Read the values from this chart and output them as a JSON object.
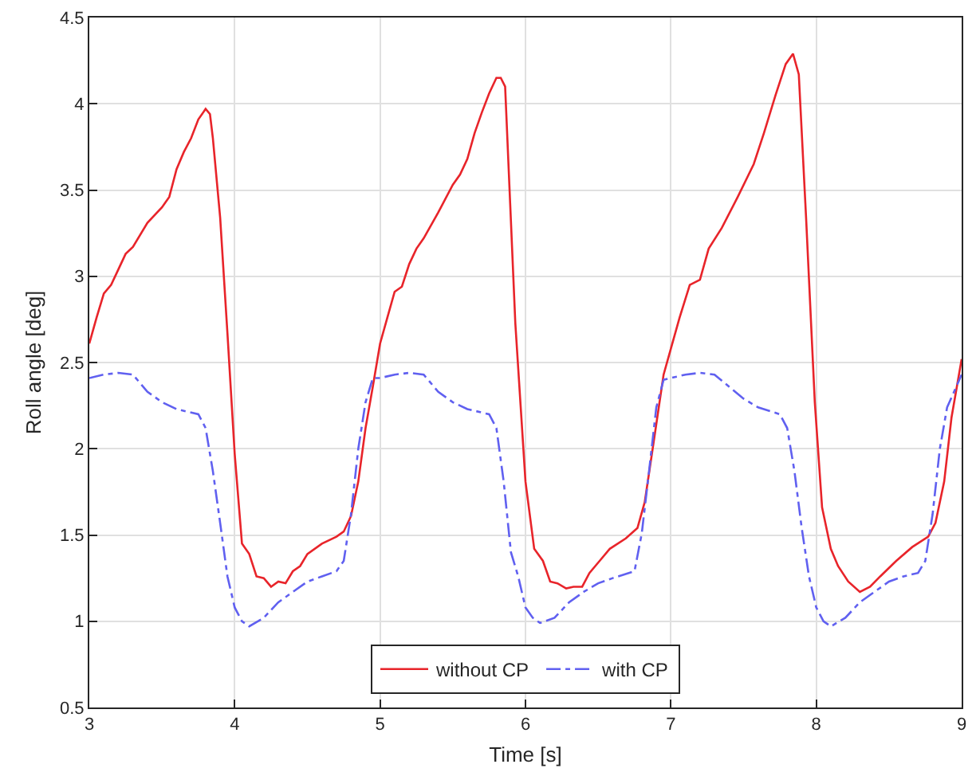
{
  "chart_data": {
    "type": "line",
    "xlabel": "Time [s]",
    "ylabel": "Roll angle [deg]",
    "xlim": [
      3,
      9
    ],
    "ylim": [
      0.5,
      4.5
    ],
    "xticks": [
      3,
      4,
      5,
      6,
      7,
      8,
      9
    ],
    "yticks": [
      0.5,
      1,
      1.5,
      2,
      2.5,
      3,
      3.5,
      4,
      4.5
    ],
    "grid": true,
    "legend": "bottom",
    "marker": "none",
    "series": [
      {
        "name": "without CP",
        "color": "#e8242a",
        "line_style": "solid",
        "x": [
          3.0,
          3.05,
          3.1,
          3.15,
          3.2,
          3.25,
          3.3,
          3.4,
          3.5,
          3.55,
          3.6,
          3.65,
          3.7,
          3.75,
          3.8,
          3.83,
          3.85,
          3.9,
          3.95,
          4.0,
          4.05,
          4.1,
          4.15,
          4.2,
          4.25,
          4.3,
          4.35,
          4.4,
          4.45,
          4.5,
          4.6,
          4.7,
          4.75,
          4.8,
          4.85,
          4.9,
          4.95,
          5.0,
          5.05,
          5.1,
          5.15,
          5.2,
          5.25,
          5.3,
          5.4,
          5.5,
          5.55,
          5.6,
          5.65,
          5.7,
          5.75,
          5.8,
          5.83,
          5.86,
          5.93,
          6.0,
          6.06,
          6.12,
          6.17,
          6.22,
          6.28,
          6.33,
          6.39,
          6.44,
          6.51,
          6.58,
          6.69,
          6.77,
          6.82,
          6.88,
          6.95,
          7.0,
          7.06,
          7.13,
          7.2,
          7.26,
          7.35,
          7.46,
          7.57,
          7.64,
          7.72,
          7.79,
          7.84,
          7.88,
          7.93,
          7.99,
          8.04,
          8.1,
          8.15,
          8.22,
          8.3,
          8.37,
          8.44,
          8.55,
          8.66,
          8.77,
          8.82,
          8.88,
          8.93,
          9.0
        ],
        "values": [
          2.61,
          2.76,
          2.9,
          2.95,
          3.04,
          3.13,
          3.17,
          3.31,
          3.4,
          3.46,
          3.62,
          3.72,
          3.8,
          3.91,
          3.97,
          3.94,
          3.8,
          3.34,
          2.67,
          1.97,
          1.45,
          1.39,
          1.26,
          1.25,
          1.2,
          1.23,
          1.22,
          1.29,
          1.32,
          1.39,
          1.45,
          1.49,
          1.52,
          1.61,
          1.81,
          2.12,
          2.36,
          2.61,
          2.76,
          2.91,
          2.94,
          3.07,
          3.16,
          3.22,
          3.37,
          3.53,
          3.59,
          3.68,
          3.83,
          3.95,
          4.06,
          4.15,
          4.15,
          4.1,
          2.73,
          1.81,
          1.42,
          1.35,
          1.23,
          1.22,
          1.19,
          1.2,
          1.2,
          1.28,
          1.35,
          1.42,
          1.48,
          1.54,
          1.69,
          2.03,
          2.43,
          2.58,
          2.76,
          2.95,
          2.98,
          3.16,
          3.28,
          3.46,
          3.65,
          3.83,
          4.05,
          4.23,
          4.29,
          4.17,
          3.34,
          2.27,
          1.66,
          1.42,
          1.32,
          1.23,
          1.17,
          1.2,
          1.26,
          1.35,
          1.43,
          1.49,
          1.57,
          1.81,
          2.18,
          2.52
        ]
      },
      {
        "name": "with CP",
        "color": "#6060f0",
        "line_style": "dashdot",
        "x": [
          3.0,
          3.1,
          3.2,
          3.3,
          3.4,
          3.5,
          3.6,
          3.75,
          3.8,
          3.85,
          3.9,
          3.95,
          4.0,
          4.05,
          4.1,
          4.2,
          4.3,
          4.4,
          4.5,
          4.6,
          4.7,
          4.75,
          4.8,
          4.85,
          4.9,
          4.95,
          5.0,
          5.1,
          5.2,
          5.3,
          5.4,
          5.5,
          5.6,
          5.75,
          5.8,
          5.85,
          5.9,
          5.95,
          6.0,
          6.05,
          6.1,
          6.2,
          6.3,
          6.4,
          6.5,
          6.6,
          6.75,
          6.8,
          6.85,
          6.9,
          6.95,
          7.0,
          7.1,
          7.2,
          7.3,
          7.4,
          7.5,
          7.6,
          7.75,
          7.8,
          7.85,
          7.9,
          7.95,
          8.0,
          8.05,
          8.1,
          8.2,
          8.3,
          8.4,
          8.5,
          8.6,
          8.7,
          8.75,
          8.8,
          8.85,
          8.9,
          9.0
        ],
        "values": [
          2.41,
          2.43,
          2.44,
          2.43,
          2.33,
          2.27,
          2.23,
          2.2,
          2.12,
          1.87,
          1.57,
          1.26,
          1.08,
          1.0,
          0.97,
          1.02,
          1.11,
          1.17,
          1.23,
          1.26,
          1.29,
          1.35,
          1.62,
          2.0,
          2.27,
          2.41,
          2.41,
          2.43,
          2.44,
          2.43,
          2.33,
          2.27,
          2.23,
          2.2,
          2.12,
          1.81,
          1.4,
          1.26,
          1.08,
          1.02,
          0.99,
          1.02,
          1.11,
          1.17,
          1.22,
          1.25,
          1.29,
          1.51,
          1.87,
          2.24,
          2.4,
          2.41,
          2.43,
          2.44,
          2.43,
          2.36,
          2.29,
          2.24,
          2.2,
          2.12,
          1.87,
          1.54,
          1.26,
          1.08,
          1.0,
          0.97,
          1.02,
          1.11,
          1.17,
          1.23,
          1.26,
          1.28,
          1.35,
          1.62,
          2.0,
          2.24,
          2.43
        ]
      }
    ]
  }
}
